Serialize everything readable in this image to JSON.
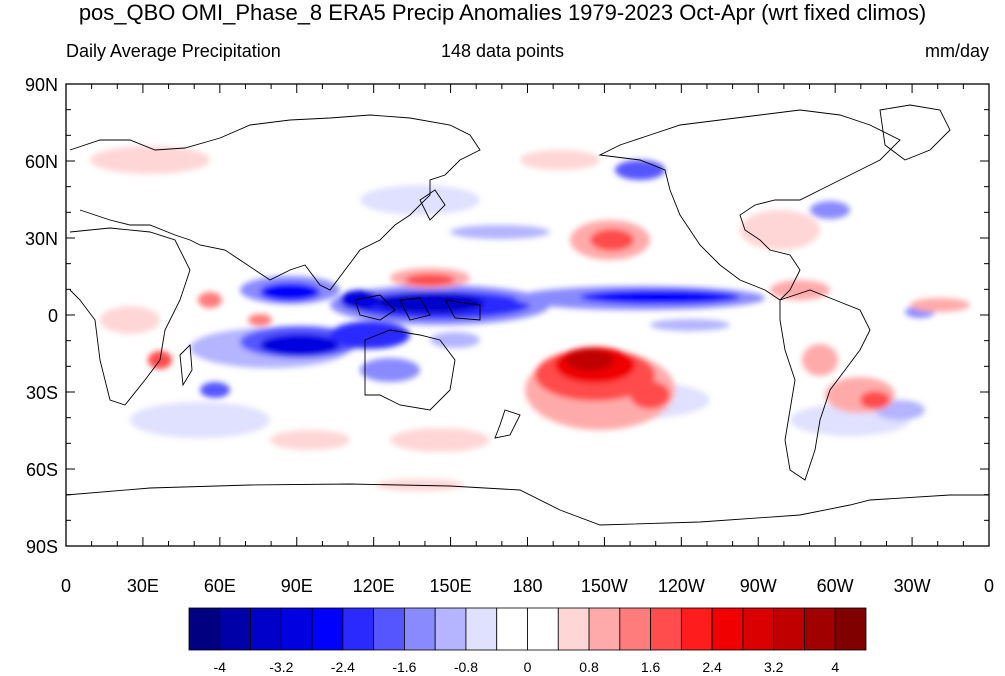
{
  "title": "pos_QBO OMI_Phase_8 ERA5 Precip Anomalies 1979-2023 Oct-Apr (wrt fixed climos)",
  "subtitle_left": "Daily Average Precipitation",
  "subtitle_center": "148 data points",
  "subtitle_right": "mm/day",
  "lat_labels": [
    "90N",
    "60N",
    "30N",
    "0",
    "30S",
    "60S",
    "90S"
  ],
  "lon_labels": [
    "0",
    "30E",
    "60E",
    "90E",
    "120E",
    "150E",
    "180",
    "150W",
    "120W",
    "90W",
    "60W",
    "30W",
    "0"
  ],
  "colorbar": {
    "colors": [
      "#000080",
      "#0000a8",
      "#0000c8",
      "#0000e0",
      "#0000ff",
      "#2a2aff",
      "#5656ff",
      "#8a8aff",
      "#b4b4ff",
      "#e0e0ff",
      "#ffffff",
      "#ffffff",
      "#ffd6d6",
      "#ffaaaa",
      "#ff7c7c",
      "#ff4c4c",
      "#ff1c1c",
      "#f00000",
      "#d80000",
      "#c00000",
      "#a00000",
      "#800000"
    ],
    "labels": [
      "-4",
      "-3.2",
      "-2.4",
      "-1.6",
      "-0.8",
      "0",
      "0.8",
      "1.6",
      "2.4",
      "3.2",
      "4"
    ]
  }
}
